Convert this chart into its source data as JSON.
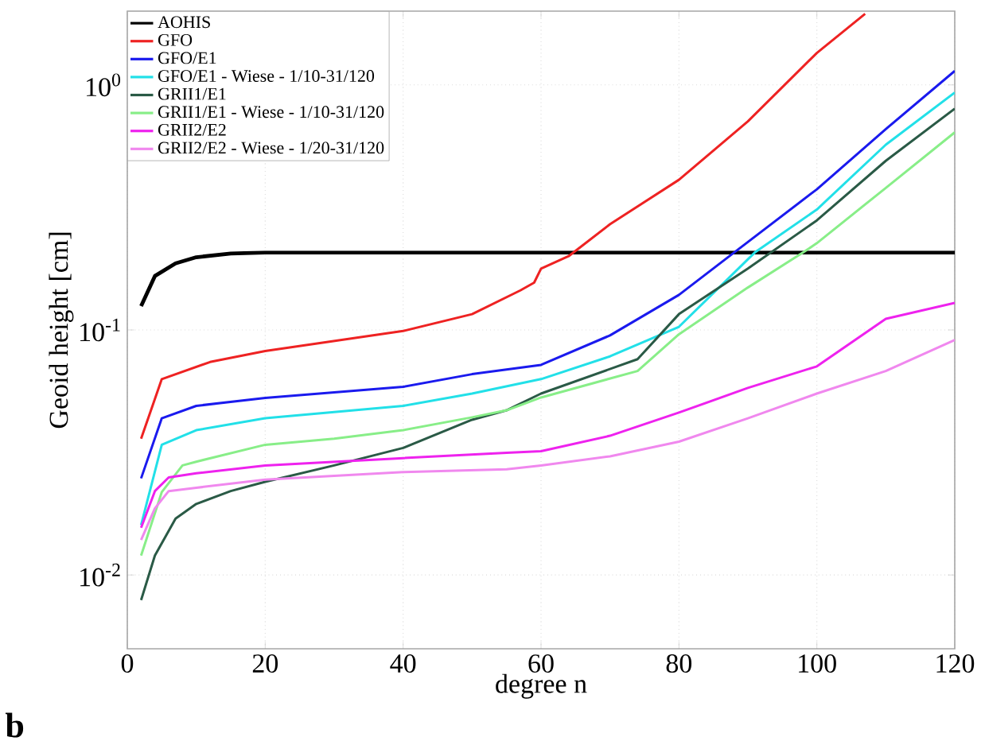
{
  "chart_data": {
    "type": "line",
    "xlabel": "degree n",
    "ylabel": "Geoid height [cm]",
    "log": "y",
    "grid": true,
    "legend": "top left",
    "line_style": "solid",
    "marker": "none",
    "xlim": [
      0,
      120
    ],
    "xticks": [
      0,
      20,
      40,
      60,
      80,
      100,
      120
    ],
    "ylim": [
      0.005,
      2
    ],
    "yticks": [
      {
        "value": 0.01,
        "label": "10$^{-2}$"
      },
      {
        "value": 0.1,
        "label": "10$^{-1}$"
      },
      {
        "value": 1,
        "label": "10$^{0}$"
      }
    ],
    "annotations": [
      "b"
    ],
    "series": [
      {
        "name": "AOHIS",
        "color": "#000000",
        "x": [
          2,
          4,
          7,
          10,
          15,
          20,
          40,
          60,
          80,
          100,
          120
        ],
        "values": [
          0.125,
          0.166,
          0.187,
          0.198,
          0.205,
          0.207,
          0.207,
          0.207,
          0.207,
          0.207,
          0.207
        ]
      },
      {
        "name": "GFO",
        "color": "#ee2222",
        "x": [
          2,
          5,
          12,
          20,
          40,
          50,
          57,
          59,
          60,
          64,
          70,
          80,
          90,
          100,
          107
        ],
        "values": [
          0.036,
          0.063,
          0.074,
          0.082,
          0.099,
          0.116,
          0.145,
          0.156,
          0.178,
          0.2,
          0.27,
          0.41,
          0.71,
          1.35,
          1.95
        ]
      },
      {
        "name": "GFO/E1",
        "color": "#1a1aee",
        "x": [
          2,
          5,
          10,
          20,
          40,
          50,
          60,
          70,
          80,
          88,
          100,
          110,
          120
        ],
        "values": [
          0.0248,
          0.0436,
          0.049,
          0.0528,
          0.0586,
          0.066,
          0.072,
          0.095,
          0.139,
          0.207,
          0.375,
          0.66,
          1.14
        ]
      },
      {
        "name": "GFO/E1 - Wiese - 1/10-31/120",
        "color": "#22e0e8",
        "x": [
          2,
          5,
          10,
          20,
          40,
          50,
          60,
          70,
          80,
          91,
          100,
          110,
          120
        ],
        "values": [
          0.016,
          0.034,
          0.039,
          0.0436,
          0.049,
          0.055,
          0.063,
          0.078,
          0.103,
          0.207,
          0.31,
          0.57,
          0.93
        ]
      },
      {
        "name": "GRII1/E1",
        "color": "#2a5a46",
        "x": [
          2,
          4,
          7,
          10,
          15,
          20,
          30,
          40,
          50,
          55,
          60,
          74,
          80,
          90,
          100,
          110,
          120
        ],
        "values": [
          0.0079,
          0.012,
          0.017,
          0.0195,
          0.022,
          0.024,
          0.028,
          0.033,
          0.043,
          0.047,
          0.055,
          0.076,
          0.116,
          0.178,
          0.28,
          0.49,
          0.8
        ]
      },
      {
        "name": "GRII1/E1 - Wiese - 1/10-31/120",
        "color": "#88ee88",
        "x": [
          2,
          5,
          8,
          10,
          20,
          30,
          40,
          50,
          55,
          60,
          74,
          80,
          90,
          98,
          100,
          110,
          120
        ],
        "values": [
          0.012,
          0.0218,
          0.028,
          0.029,
          0.034,
          0.036,
          0.039,
          0.044,
          0.047,
          0.053,
          0.068,
          0.096,
          0.149,
          0.207,
          0.226,
          0.38,
          0.64
        ]
      },
      {
        "name": "GRII2/E2",
        "color": "#ee22ee",
        "x": [
          2,
          4,
          6,
          10,
          20,
          40,
          55,
          60,
          70,
          80,
          90,
          100,
          110,
          120
        ],
        "values": [
          0.0156,
          0.022,
          0.025,
          0.026,
          0.028,
          0.03,
          0.0315,
          0.032,
          0.037,
          0.046,
          0.058,
          0.071,
          0.111,
          0.129
        ]
      },
      {
        "name": "GRII2/E2 - Wiese - 1/20-31/120",
        "color": "#f088ee",
        "x": [
          2,
          4,
          6,
          10,
          20,
          40,
          55,
          60,
          70,
          80,
          90,
          100,
          110,
          120
        ],
        "values": [
          0.0139,
          0.0187,
          0.022,
          0.0227,
          0.0245,
          0.0263,
          0.027,
          0.028,
          0.0305,
          0.035,
          0.0436,
          0.055,
          0.068,
          0.091
        ]
      }
    ]
  }
}
